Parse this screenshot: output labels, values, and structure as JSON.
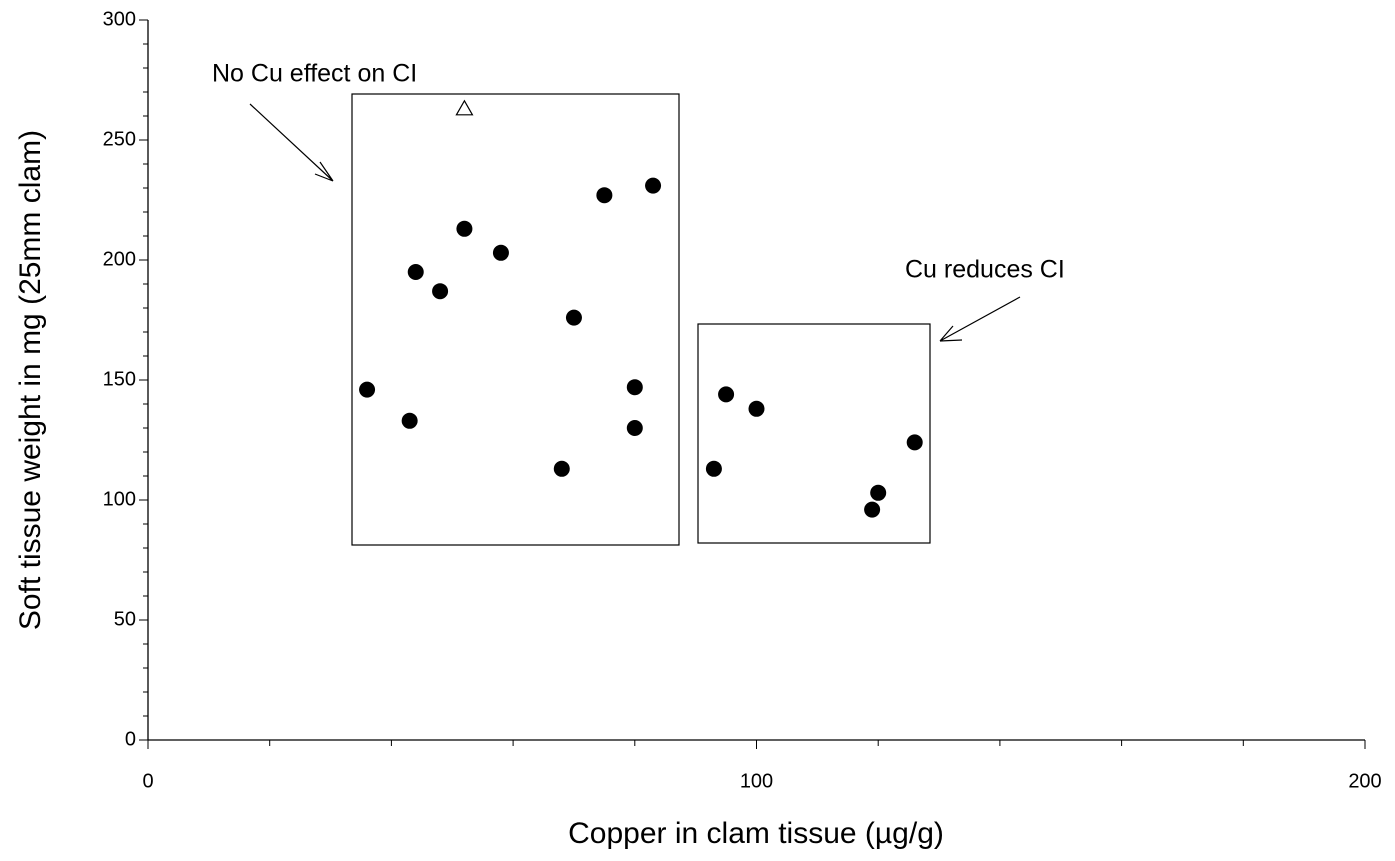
{
  "chart_data": {
    "type": "scatter",
    "x_label": "Copper in clam tissue (µg/g)",
    "y_label": "Soft tissue weight in mg (25mm clam)",
    "xlim": [
      0,
      200
    ],
    "ylim": [
      0,
      300
    ],
    "xticks": [
      0,
      100,
      200
    ],
    "yticks": [
      0,
      50,
      100,
      150,
      200,
      250,
      300
    ],
    "xminor_ticks": [
      20,
      40,
      60,
      80,
      120,
      140,
      160,
      180
    ],
    "yminor_ticks": [
      10,
      20,
      30,
      40,
      60,
      70,
      80,
      90,
      110,
      120,
      130,
      140,
      160,
      170,
      180,
      190,
      210,
      220,
      230,
      240,
      260,
      270,
      280,
      290
    ],
    "annotations": [
      "No Cu effect on CI",
      "Cu reduces CI"
    ],
    "series": [
      {
        "marker": "circle",
        "color": "#000000",
        "x": [
          36,
          43,
          44,
          48,
          52,
          58,
          68,
          70,
          75,
          80,
          80,
          83,
          93,
          95,
          100,
          119,
          120,
          126
        ],
        "values": [
          146,
          133,
          195,
          187,
          213,
          203,
          113,
          176,
          227,
          147,
          130,
          231,
          113,
          144,
          138,
          96,
          103,
          124
        ]
      },
      {
        "marker": "triangle",
        "color": "#000000",
        "x": [
          52
        ],
        "values": [
          263
        ]
      }
    ]
  }
}
